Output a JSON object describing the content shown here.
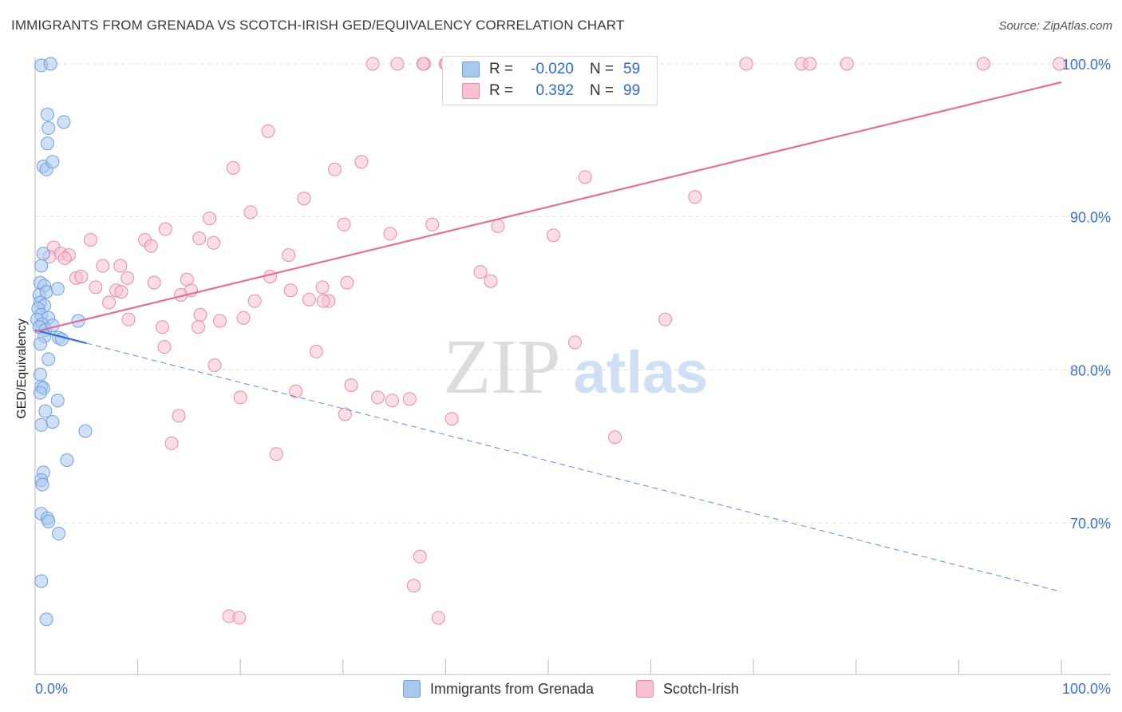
{
  "title": "IMMIGRANTS FROM GRENADA VS SCOTCH-IRISH GED/EQUIVALENCY CORRELATION CHART",
  "source": "Source: ZipAtlas.com",
  "watermark": {
    "zip": "ZIP",
    "atlas": "atlas"
  },
  "legend": {
    "rows": [
      {
        "r_label": "R =",
        "r_value": "-0.020",
        "n_label": "N =",
        "n_value": "59"
      },
      {
        "r_label": "R =",
        "r_value": "0.392",
        "n_label": "N =",
        "n_value": "99"
      }
    ]
  },
  "bottom_legend": [
    "Immigrants from Grenada",
    "Scotch-Irish"
  ],
  "colors": {
    "blue_fill": "#a9c8f0",
    "blue_stroke": "#6f9fe0",
    "blue_line": "#2f6fd0",
    "pink_fill": "#f7c1d2",
    "pink_stroke": "#e88aa8",
    "pink_line": "#e0709a",
    "tick_text": "#3a72c8",
    "grid": "#e2e2e2"
  },
  "chart_data": {
    "type": "scatter",
    "title": "IMMIGRANTS FROM GRENADA VS SCOTCH-IRISH GED/EQUIVALENCY CORRELATION CHART",
    "xlabel": "",
    "ylabel": "GED/Equivalency",
    "x_tick_labels": [
      "0.0%",
      "100.0%"
    ],
    "y_ticks": [
      70,
      80,
      90,
      100
    ],
    "y_tick_labels": [
      "70.0%",
      "80.0%",
      "90.0%",
      "100.0%"
    ],
    "xlim": [
      0,
      100
    ],
    "ylim": [
      61,
      101
    ],
    "series": [
      {
        "name": "Immigrants from Grenada",
        "color": "blue",
        "R": -0.02,
        "N": 59,
        "trend": {
          "x0": 0,
          "y0": 82.6,
          "x1": 100,
          "y1": 65.5,
          "solid_until_x": 5
        },
        "points": [
          [
            0.6,
            99.9
          ],
          [
            1.5,
            100.0
          ],
          [
            1.2,
            96.7
          ],
          [
            1.3,
            95.8
          ],
          [
            2.8,
            96.2
          ],
          [
            1.2,
            94.8
          ],
          [
            0.8,
            93.3
          ],
          [
            1.1,
            93.1
          ],
          [
            1.7,
            93.6
          ],
          [
            0.8,
            87.6
          ],
          [
            0.6,
            86.8
          ],
          [
            0.5,
            85.7
          ],
          [
            0.9,
            85.5
          ],
          [
            0.4,
            84.9
          ],
          [
            1.1,
            85.1
          ],
          [
            2.2,
            85.3
          ],
          [
            0.5,
            84.4
          ],
          [
            0.9,
            84.2
          ],
          [
            0.3,
            84.0
          ],
          [
            0.6,
            83.6
          ],
          [
            0.2,
            83.3
          ],
          [
            1.3,
            83.4
          ],
          [
            0.7,
            83.0
          ],
          [
            0.4,
            82.8
          ],
          [
            1.0,
            82.6
          ],
          [
            1.7,
            82.9
          ],
          [
            0.9,
            82.2
          ],
          [
            4.2,
            83.2
          ],
          [
            2.3,
            82.1
          ],
          [
            2.6,
            82.0
          ],
          [
            0.5,
            81.7
          ],
          [
            1.3,
            80.7
          ],
          [
            0.5,
            79.7
          ],
          [
            0.6,
            78.9
          ],
          [
            0.8,
            78.8
          ],
          [
            0.5,
            78.5
          ],
          [
            2.2,
            78.0
          ],
          [
            1.0,
            77.3
          ],
          [
            0.6,
            76.4
          ],
          [
            1.7,
            76.6
          ],
          [
            4.9,
            76.0
          ],
          [
            3.1,
            74.1
          ],
          [
            0.8,
            73.3
          ],
          [
            0.6,
            72.8
          ],
          [
            0.7,
            72.5
          ],
          [
            0.6,
            70.6
          ],
          [
            1.2,
            70.3
          ],
          [
            1.3,
            70.1
          ],
          [
            2.3,
            69.3
          ],
          [
            0.6,
            66.2
          ],
          [
            1.1,
            63.7
          ]
        ]
      },
      {
        "name": "Scotch-Irish",
        "color": "pink",
        "R": 0.392,
        "N": 99,
        "trend": {
          "x0": 0,
          "y0": 82.5,
          "x1": 100,
          "y1": 98.8
        },
        "points": [
          [
            32.9,
            100.0
          ],
          [
            35.3,
            100.0
          ],
          [
            37.9,
            100.0
          ],
          [
            37.8,
            100.0
          ],
          [
            40.0,
            100.0
          ],
          [
            40.1,
            100.0
          ],
          [
            42.1,
            100.0
          ],
          [
            49.6,
            100.0
          ],
          [
            55.5,
            100.0
          ],
          [
            58.3,
            100.0
          ],
          [
            69.3,
            100.0
          ],
          [
            74.7,
            100.0
          ],
          [
            75.5,
            100.0
          ],
          [
            79.1,
            100.0
          ],
          [
            92.4,
            100.0
          ],
          [
            99.8,
            100.0
          ],
          [
            22.7,
            95.6
          ],
          [
            19.3,
            93.2
          ],
          [
            29.2,
            93.1
          ],
          [
            31.8,
            93.6
          ],
          [
            53.6,
            92.6
          ],
          [
            64.3,
            91.3
          ],
          [
            26.2,
            91.2
          ],
          [
            17.0,
            89.9
          ],
          [
            21.0,
            90.3
          ],
          [
            12.7,
            89.2
          ],
          [
            30.1,
            89.5
          ],
          [
            38.7,
            89.5
          ],
          [
            45.1,
            89.4
          ],
          [
            34.6,
            88.9
          ],
          [
            50.5,
            88.8
          ],
          [
            5.4,
            88.5
          ],
          [
            10.7,
            88.5
          ],
          [
            16.0,
            88.6
          ],
          [
            17.4,
            88.3
          ],
          [
            11.3,
            88.1
          ],
          [
            1.8,
            88.0
          ],
          [
            1.4,
            87.4
          ],
          [
            2.5,
            87.6
          ],
          [
            3.3,
            87.5
          ],
          [
            24.7,
            87.5
          ],
          [
            2.9,
            87.3
          ],
          [
            6.6,
            86.8
          ],
          [
            8.3,
            86.8
          ],
          [
            43.4,
            86.4
          ],
          [
            4.0,
            86.0
          ],
          [
            4.5,
            86.1
          ],
          [
            22.9,
            86.1
          ],
          [
            9.0,
            86.0
          ],
          [
            14.8,
            85.9
          ],
          [
            11.6,
            85.7
          ],
          [
            30.4,
            85.7
          ],
          [
            44.4,
            85.8
          ],
          [
            5.9,
            85.4
          ],
          [
            7.9,
            85.2
          ],
          [
            8.4,
            85.1
          ],
          [
            15.2,
            85.2
          ],
          [
            24.9,
            85.2
          ],
          [
            28.0,
            85.4
          ],
          [
            14.2,
            84.9
          ],
          [
            26.7,
            84.6
          ],
          [
            28.6,
            84.5
          ],
          [
            28.1,
            84.5
          ],
          [
            21.4,
            84.5
          ],
          [
            7.2,
            84.4
          ],
          [
            16.1,
            83.6
          ],
          [
            9.1,
            83.3
          ],
          [
            20.3,
            83.4
          ],
          [
            12.4,
            82.8
          ],
          [
            18.0,
            83.2
          ],
          [
            15.9,
            82.8
          ],
          [
            61.4,
            83.3
          ],
          [
            52.6,
            81.8
          ],
          [
            12.6,
            81.5
          ],
          [
            27.4,
            81.2
          ],
          [
            17.5,
            80.3
          ],
          [
            30.8,
            79.0
          ],
          [
            25.4,
            78.6
          ],
          [
            33.4,
            78.2
          ],
          [
            34.8,
            78.0
          ],
          [
            36.5,
            78.1
          ],
          [
            20.0,
            78.2
          ],
          [
            14.0,
            77.0
          ],
          [
            30.2,
            77.1
          ],
          [
            40.6,
            76.8
          ],
          [
            56.5,
            75.6
          ],
          [
            13.3,
            75.2
          ],
          [
            23.5,
            74.5
          ],
          [
            37.5,
            67.8
          ],
          [
            36.9,
            65.9
          ],
          [
            18.9,
            63.9
          ],
          [
            19.9,
            63.8
          ],
          [
            39.3,
            63.8
          ]
        ]
      }
    ]
  }
}
